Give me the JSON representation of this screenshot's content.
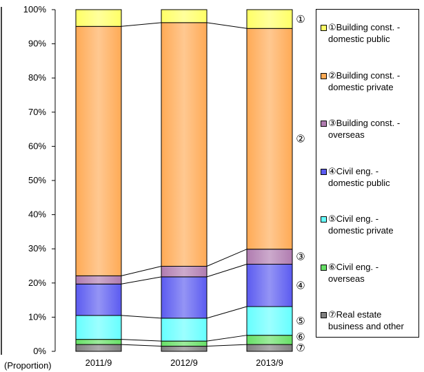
{
  "chart_data": {
    "type": "bar",
    "stacked": true,
    "categories": [
      "2011/9",
      "2012/9",
      "2013/9"
    ],
    "ylim": [
      0,
      100
    ],
    "ylabel": "(Proportion)",
    "yticks": [
      "0%",
      "10%",
      "20%",
      "30%",
      "40%",
      "50%",
      "60%",
      "70%",
      "80%",
      "90%",
      "100%"
    ],
    "series": [
      {
        "name": "⑦Real estate business and other",
        "mark": "⑦",
        "color": "#808080",
        "values": [
          2.0,
          1.5,
          2.0
        ]
      },
      {
        "name": "⑥Civil eng. - overseas",
        "mark": "⑥",
        "color": "#66e066",
        "values": [
          1.5,
          1.5,
          2.7
        ]
      },
      {
        "name": "⑤Civil eng. - domestic  private",
        "mark": "⑤",
        "color": "#66ffff",
        "values": [
          7.0,
          6.7,
          8.4
        ]
      },
      {
        "name": "④Civil eng. - domestic public",
        "mark": "④",
        "color": "#5b5bf0",
        "values": [
          9.2,
          12.1,
          12.4
        ]
      },
      {
        "name": "③Building const. - overseas",
        "mark": "③",
        "color": "#b07cb0",
        "values": [
          2.4,
          3.1,
          4.4
        ]
      },
      {
        "name": "②Building const. - domestic private",
        "mark": "②",
        "color": "#ffaa55",
        "values": [
          73.0,
          71.3,
          64.6
        ]
      },
      {
        "name": "①Building const. - domestic public",
        "mark": "①",
        "color": "#ffff66",
        "values": [
          4.9,
          3.8,
          5.5
        ]
      }
    ],
    "legend_position": "right",
    "legend": [
      {
        "mark": "①",
        "line1": "Building const. -",
        "line2": "domestic public",
        "color": "#ffff66"
      },
      {
        "mark": "②",
        "line1": "Building const. -",
        "line2": "domestic private",
        "color": "#ffaa55"
      },
      {
        "mark": "③",
        "line1": "Building const. -",
        "line2": "overseas",
        "color": "#b07cb0"
      },
      {
        "mark": "④",
        "line1": "Civil eng. -",
        "line2": "domestic public",
        "color": "#5b5bf0"
      },
      {
        "mark": "⑤",
        "line1": "Civil eng. -",
        "line2": "domestic  private",
        "color": "#66ffff"
      },
      {
        "mark": "⑥",
        "line1": "Civil eng. -",
        "line2": "overseas",
        "color": "#66e066"
      },
      {
        "mark": "⑦",
        "line1": "Real estate",
        "line2": "business and other",
        "color": "#808080"
      }
    ]
  }
}
